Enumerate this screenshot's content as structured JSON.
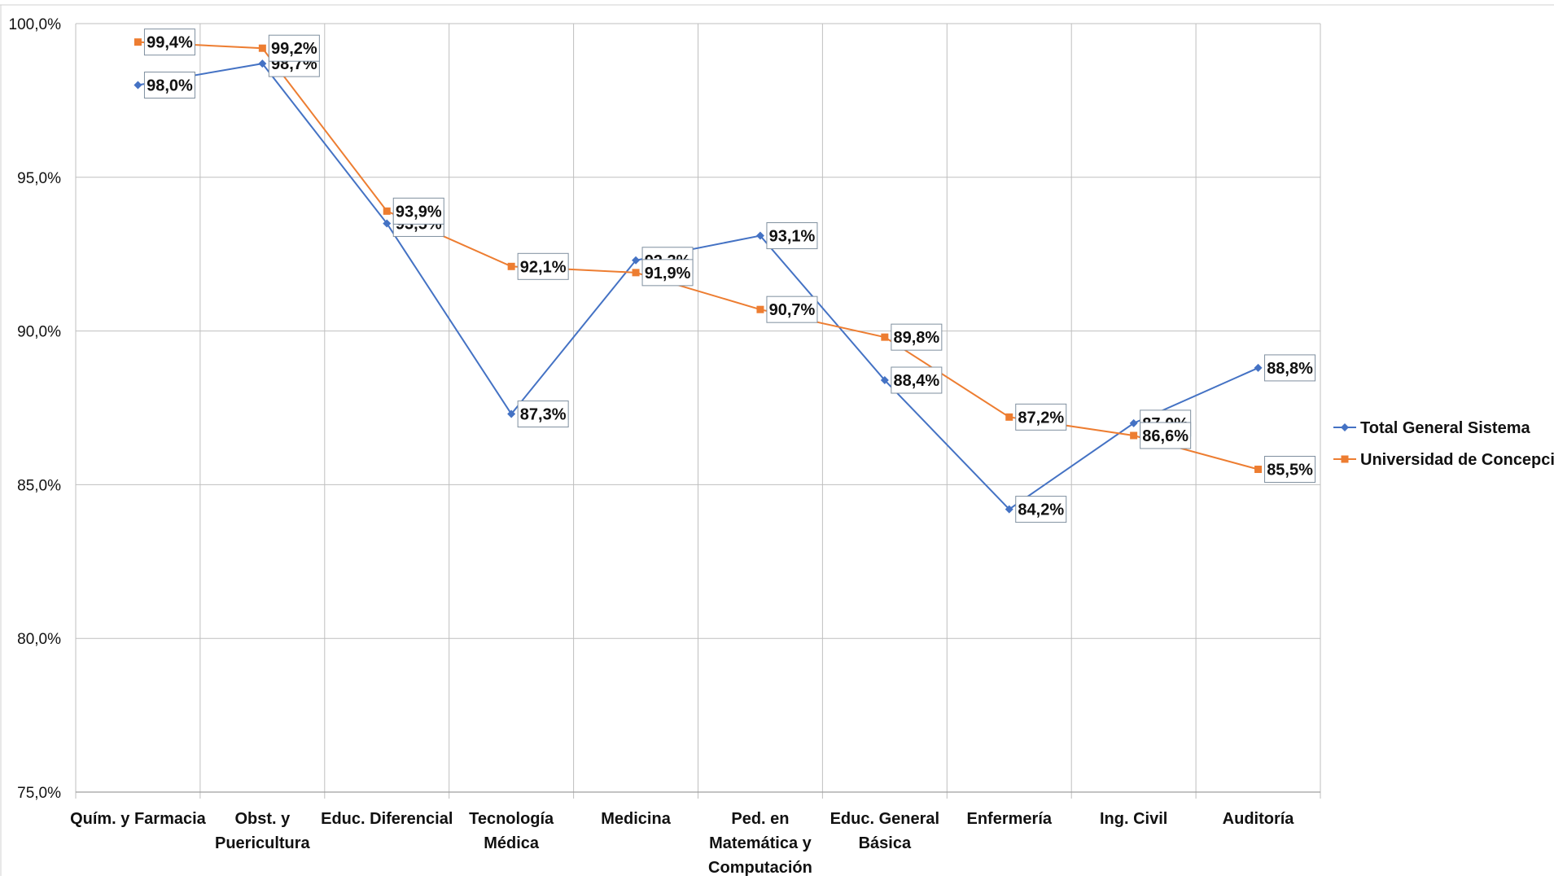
{
  "chart_data": {
    "type": "line",
    "title": "",
    "xlabel": "",
    "ylabel": "",
    "categories": [
      [
        "Quím. y Farmacia"
      ],
      [
        "Obst. y",
        "Puericultura"
      ],
      [
        "Educ. Diferencial"
      ],
      [
        "Tecnología",
        "Médica"
      ],
      [
        "Medicina"
      ],
      [
        "Ped. en",
        "Matemática y",
        "Computación"
      ],
      [
        "Educ. General",
        "Básica"
      ],
      [
        "Enfermería"
      ],
      [
        "Ing. Civil"
      ],
      [
        "Auditoría"
      ]
    ],
    "ylim": [
      75.0,
      100.0
    ],
    "yticks": [
      75.0,
      80.0,
      85.0,
      90.0,
      95.0,
      100.0
    ],
    "ytick_labels": [
      "75,0%",
      "80,0%",
      "85,0%",
      "90,0%",
      "95,0%",
      "100,0%"
    ],
    "grid": true,
    "legend_position": "right",
    "series": [
      {
        "name": "Total General Sistema",
        "color": "#4472C4",
        "marker": "diamond",
        "values": [
          98.0,
          98.7,
          93.5,
          87.3,
          92.3,
          93.1,
          88.4,
          84.2,
          87.0,
          88.8
        ],
        "labels": [
          "98,0%",
          "98,7%",
          "93,5%",
          "87,3%",
          "92,3%",
          "93,1%",
          "88,4%",
          "84,2%",
          "87,0%",
          "88,8%"
        ]
      },
      {
        "name": "Universidad de Concepción",
        "color": "#ED7D31",
        "marker": "square",
        "values": [
          99.4,
          99.2,
          93.9,
          92.1,
          91.9,
          90.7,
          89.8,
          87.2,
          86.6,
          85.5
        ],
        "labels": [
          "99,4%",
          "99,2%",
          "93,9%",
          "92,1%",
          "91,9%",
          "90,7%",
          "89,8%",
          "87,2%",
          "86,6%",
          "85,5%"
        ]
      }
    ]
  }
}
